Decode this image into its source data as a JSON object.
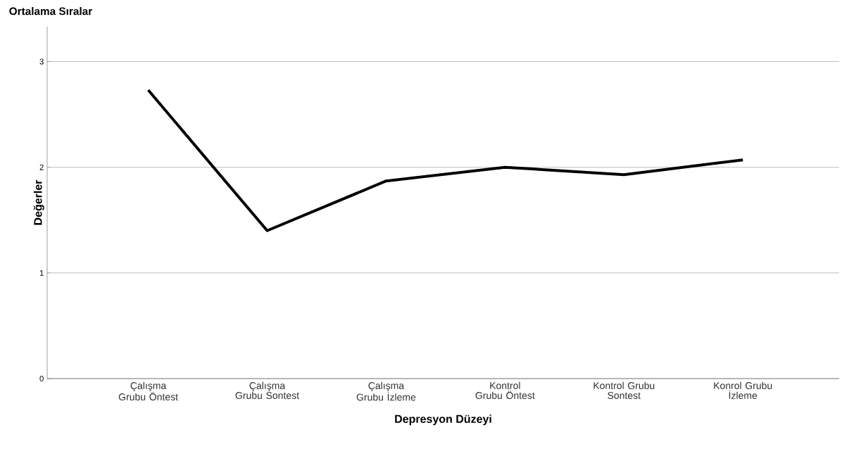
{
  "chart_data": {
    "type": "line",
    "title": "Ortalama Sıralar",
    "xlabel": "Depresyon Düzeyi",
    "ylabel": "Değerler",
    "categories": [
      "Çalışma Grubu Öntest",
      "Çalışma Grubu Sontest",
      "Çalışma Grubu İzleme",
      "Kontrol Grubu Öntest",
      "Kontrol Grubu Sontest",
      "Konrol Grubu İzleme"
    ],
    "series": [
      {
        "color": "#000000",
        "values": [
          2.73,
          1.4,
          1.87,
          2.0,
          1.93,
          2.07
        ]
      }
    ],
    "ylim": [
      0,
      3.33
    ],
    "yticks": [
      0,
      1,
      2,
      3
    ],
    "grid": "y",
    "marker": "none",
    "line_style": "solid"
  }
}
